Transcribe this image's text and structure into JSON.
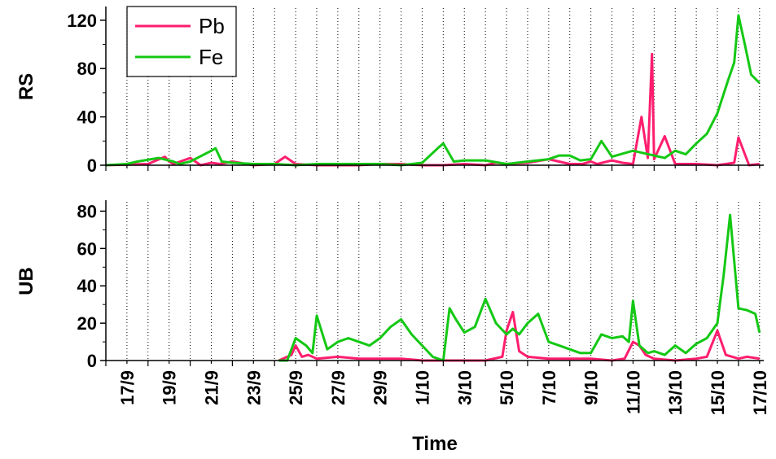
{
  "chart_data": {
    "type": "line",
    "xlabel": "Time",
    "x_ticks": [
      "17/9",
      "19/9",
      "21/9",
      "23/9",
      "25/9",
      "27/9",
      "29/9",
      "1/10",
      "3/10",
      "5/10",
      "7/10",
      "9/10",
      "11/10",
      "13/10",
      "15/10",
      "17/10"
    ],
    "x_range_days": [
      0,
      31.2
    ],
    "vertical_gridlines": "dotted, daily",
    "legend": {
      "placement": "top-left",
      "entries": [
        {
          "name": "Pb",
          "color": "#ff1e6e"
        },
        {
          "name": "Fe",
          "color": "#14c814"
        }
      ]
    },
    "panels": [
      {
        "name": "RS",
        "ylabel": "RS",
        "ylim": [
          0,
          130
        ],
        "yticks": [
          0,
          40,
          80,
          120
        ],
        "minor_yticks": [
          20,
          60,
          100
        ],
        "series": [
          {
            "name": "Pb",
            "color": "#ff1e6e",
            "x": [
              0,
              1,
              2,
              2.8,
              3,
              3.2,
              4,
              4.5,
              5,
              5.4,
              6,
              7,
              8,
              8.5,
              9,
              10,
              11,
              12,
              13,
              14,
              15,
              16,
              17,
              18,
              18.5,
              19,
              20,
              21,
              22,
              22.6,
              23,
              23.3,
              24,
              24.5,
              25,
              25.4,
              25.7,
              25.9,
              26,
              26.5,
              27,
              28,
              29,
              29.8,
              30,
              30.5,
              31
            ],
            "y": [
              0,
              0.5,
              1,
              7,
              3,
              1,
              6,
              0,
              2,
              1,
              3,
              0,
              1,
              7,
              1,
              0,
              0,
              0,
              1,
              1,
              0,
              0,
              1,
              0,
              2,
              1,
              2,
              5,
              1,
              1,
              3,
              1,
              4,
              2,
              1,
              40,
              6,
              92,
              5,
              24,
              1,
              1,
              0,
              2,
              23,
              0,
              1
            ]
          },
          {
            "name": "Fe",
            "color": "#14c814",
            "x": [
              0,
              0.5,
              1,
              1.5,
              2.5,
              3.2,
              3.5,
              4,
              5,
              5.2,
              5.5,
              6,
              7,
              8,
              9,
              10,
              11,
              12,
              13,
              14,
              15,
              15.8,
              16,
              16.5,
              17,
              18,
              19,
              20,
              21,
              21.5,
              22,
              22.5,
              23,
              23.5,
              24,
              25,
              25.5,
              26,
              26.5,
              27,
              27.5,
              28,
              28.5,
              29,
              29.5,
              29.8,
              30,
              30.3,
              30.6,
              31
            ],
            "y": [
              0,
              0.5,
              1,
              3,
              6,
              3,
              1,
              3,
              12,
              14,
              3,
              2,
              1,
              1,
              0,
              1,
              1,
              1,
              1,
              0,
              2,
              15,
              18,
              3,
              4,
              4,
              1,
              3,
              5,
              8,
              8,
              4,
              5,
              20,
              7,
              12,
              10,
              8,
              6,
              12,
              9,
              18,
              26,
              43,
              70,
              85,
              124,
              100,
              75,
              68
            ]
          }
        ]
      },
      {
        "name": "UB",
        "ylabel": "UB",
        "ylim": [
          0,
          85
        ],
        "yticks": [
          0,
          20,
          40,
          60,
          80
        ],
        "minor_yticks": [
          10,
          30,
          50,
          70
        ],
        "series": [
          {
            "name": "Pb",
            "color": "#ff1e6e",
            "x": [
              8.2,
              8.8,
              9,
              9.3,
              9.6,
              10,
              11,
              12,
              13,
              14,
              15,
              16,
              17,
              18,
              18.8,
              19,
              19.3,
              19.6,
              20,
              21,
              22,
              23,
              24,
              24.6,
              25,
              25.3,
              25.6,
              26,
              27,
              28,
              28.5,
              29,
              29.4,
              30,
              30.4,
              31
            ],
            "y": [
              0,
              3,
              8,
              2,
              3,
              1,
              2,
              1,
              1,
              1,
              0,
              0,
              0,
              0,
              2,
              16,
              26,
              5,
              2,
              1,
              1,
              1,
              0,
              1,
              10,
              8,
              3,
              1,
              0,
              1,
              2,
              16,
              3,
              1,
              2,
              1
            ]
          },
          {
            "name": "Fe",
            "color": "#14c814",
            "x": [
              8.2,
              8.6,
              9,
              9.5,
              9.8,
              10,
              10.5,
              11,
              11.5,
              12,
              12.5,
              13,
              13.5,
              14,
              14.5,
              15,
              15.5,
              16,
              16.3,
              16.6,
              17,
              17.5,
              18,
              18.5,
              19,
              19.3,
              19.6,
              20,
              20.5,
              21,
              21.5,
              22,
              22.5,
              23,
              23.5,
              24,
              24.5,
              24.8,
              25,
              25.3,
              25.7,
              26,
              26.5,
              27,
              27.5,
              28,
              28.5,
              29,
              29.3,
              29.6,
              30,
              30.4,
              30.8,
              31
            ],
            "y": [
              0,
              0,
              12,
              8,
              4,
              24,
              6,
              10,
              12,
              10,
              8,
              12,
              18,
              22,
              14,
              8,
              2,
              0,
              28,
              22,
              15,
              18,
              33,
              20,
              14,
              17,
              14,
              20,
              25,
              10,
              8,
              6,
              4,
              4,
              14,
              12,
              13,
              10,
              32,
              8,
              4,
              5,
              3,
              8,
              4,
              9,
              12,
              20,
              46,
              78,
              28,
              27,
              25,
              15
            ]
          }
        ]
      }
    ]
  }
}
